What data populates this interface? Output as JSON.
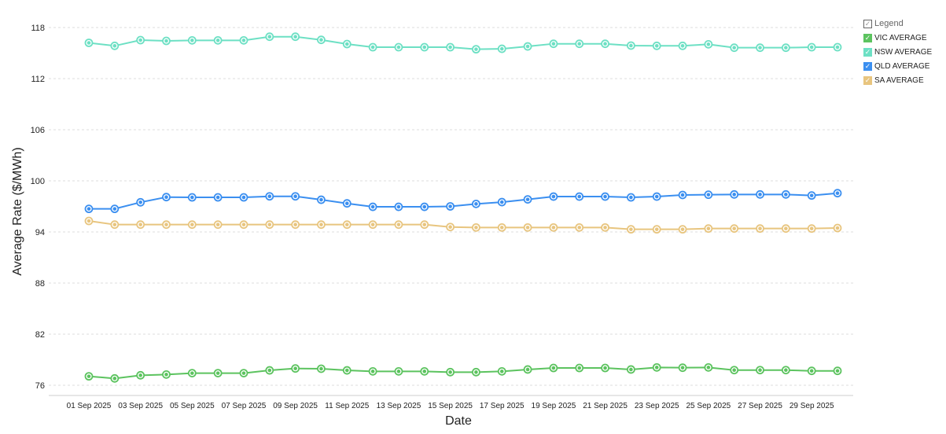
{
  "chart_data": {
    "type": "line",
    "title": "",
    "xlabel": "Date",
    "ylabel": "Average Rate ($/MWh)",
    "ylim": [
      74.8,
      118
    ],
    "yticks": [
      76,
      82,
      88,
      94,
      100,
      106,
      112,
      118
    ],
    "grid": true,
    "legend_position": "top-right",
    "legend_title": "Legend",
    "x": [
      "01 Sep 2025",
      "02 Sep 2025",
      "03 Sep 2025",
      "04 Sep 2025",
      "05 Sep 2025",
      "06 Sep 2025",
      "07 Sep 2025",
      "08 Sep 2025",
      "09 Sep 2025",
      "10 Sep 2025",
      "11 Sep 2025",
      "12 Sep 2025",
      "13 Sep 2025",
      "14 Sep 2025",
      "15 Sep 2025",
      "16 Sep 2025",
      "17 Sep 2025",
      "18 Sep 2025",
      "19 Sep 2025",
      "20 Sep 2025",
      "21 Sep 2025",
      "22 Sep 2025",
      "23 Sep 2025",
      "24 Sep 2025",
      "25 Sep 2025",
      "26 Sep 2025",
      "27 Sep 2025",
      "28 Sep 2025",
      "29 Sep 2025",
      "30 Sep 2025"
    ],
    "xtick_labels": [
      "01 Sep 2025",
      "03 Sep 2025",
      "05 Sep 2025",
      "07 Sep 2025",
      "09 Sep 2025",
      "11 Sep 2025",
      "13 Sep 2025",
      "15 Sep 2025",
      "17 Sep 2025",
      "19 Sep 2025",
      "21 Sep 2025",
      "23 Sep 2025",
      "25 Sep 2025",
      "27 Sep 2025",
      "29 Sep 2025"
    ],
    "series": [
      {
        "name": "VIC AVERAGE",
        "color": "#5cc35f",
        "values": [
          77.05,
          76.8,
          77.17,
          77.26,
          77.42,
          77.42,
          77.42,
          77.75,
          77.97,
          77.94,
          77.75,
          77.63,
          77.63,
          77.63,
          77.54,
          77.54,
          77.63,
          77.85,
          78.03,
          78.03,
          78.03,
          77.85,
          78.09,
          78.06,
          78.09,
          77.78,
          77.78,
          77.78,
          77.69,
          77.69
        ]
      },
      {
        "name": "NSW AVERAGE",
        "color": "#6de0c4",
        "values": [
          116.2,
          115.85,
          116.52,
          116.43,
          116.49,
          116.49,
          116.49,
          116.92,
          116.92,
          116.55,
          116.06,
          115.69,
          115.69,
          115.69,
          115.69,
          115.45,
          115.5,
          115.78,
          116.09,
          116.09,
          116.09,
          115.88,
          115.85,
          115.85,
          116.03,
          115.63,
          115.63,
          115.63,
          115.69,
          115.69
        ]
      },
      {
        "name": "QLD AVERAGE",
        "color": "#3b8ff0",
        "values": [
          96.71,
          96.71,
          97.48,
          98.09,
          98.06,
          98.06,
          98.06,
          98.18,
          98.18,
          97.78,
          97.35,
          96.95,
          96.95,
          96.95,
          97.0,
          97.29,
          97.5,
          97.82,
          98.15,
          98.15,
          98.15,
          98.06,
          98.15,
          98.34,
          98.37,
          98.4,
          98.4,
          98.4,
          98.28,
          98.55
        ]
      },
      {
        "name": "SA AVERAGE",
        "color": "#e8c57f",
        "values": [
          95.29,
          94.86,
          94.86,
          94.86,
          94.86,
          94.86,
          94.86,
          94.86,
          94.86,
          94.86,
          94.86,
          94.86,
          94.86,
          94.86,
          94.58,
          94.52,
          94.52,
          94.52,
          94.52,
          94.52,
          94.52,
          94.31,
          94.31,
          94.31,
          94.4,
          94.4,
          94.4,
          94.4,
          94.4,
          94.46
        ]
      }
    ]
  }
}
